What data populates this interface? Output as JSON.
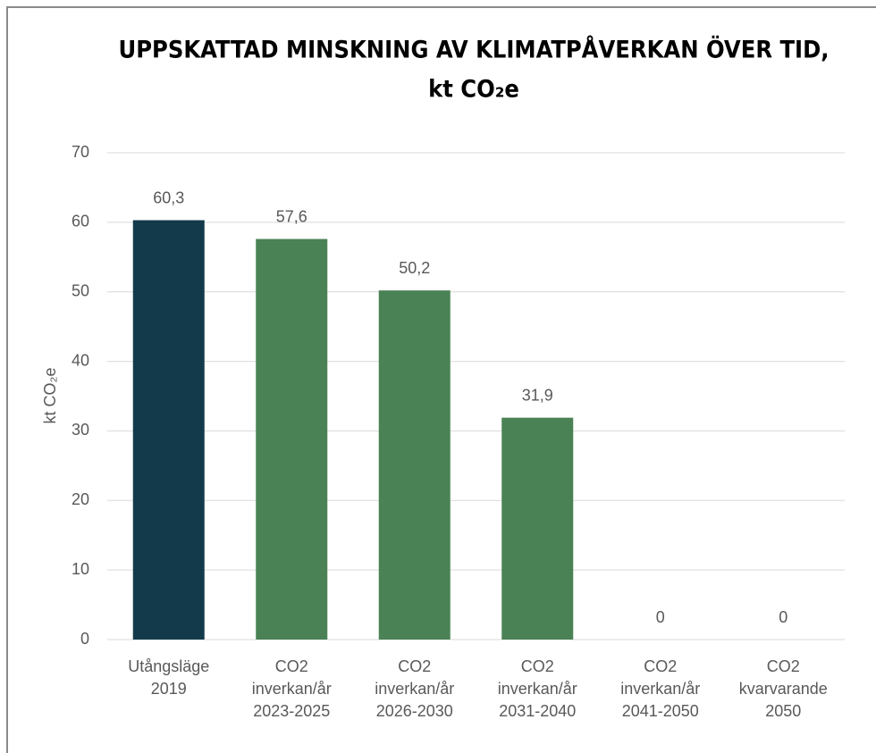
{
  "chart_data": {
    "type": "bar",
    "title": [
      "UPPSKATTAD MINSKNING AV KLIMATPÅVERKAN ÖVER TID,",
      "kt CO₂e"
    ],
    "y_label": "kt CO₂e",
    "categories": [
      [
        "Utångsläge",
        "2019"
      ],
      [
        "CO2",
        "inverkan/år",
        "2023-2025"
      ],
      [
        "CO2",
        "inverkan/år",
        "2026-2030"
      ],
      [
        "CO2",
        "inverkan/år",
        "2031-2040"
      ],
      [
        "CO2",
        "inverkan/år",
        "2041-2050"
      ],
      [
        "CO2",
        "kvarvarande",
        "2050"
      ]
    ],
    "values": [
      60.3,
      57.6,
      50.2,
      31.9,
      0,
      0
    ],
    "value_labels": [
      "60,3",
      "57,6",
      "50,2",
      "31,9",
      "0",
      "0"
    ],
    "colors": [
      "#133a4a",
      "#4a8255",
      "#4a8255",
      "#4a8255",
      "#4a8255",
      "#4a8255"
    ],
    "ylim": [
      0,
      70
    ],
    "yticks": [
      0,
      10,
      20,
      30,
      40,
      50,
      60,
      70
    ],
    "grid": true
  }
}
